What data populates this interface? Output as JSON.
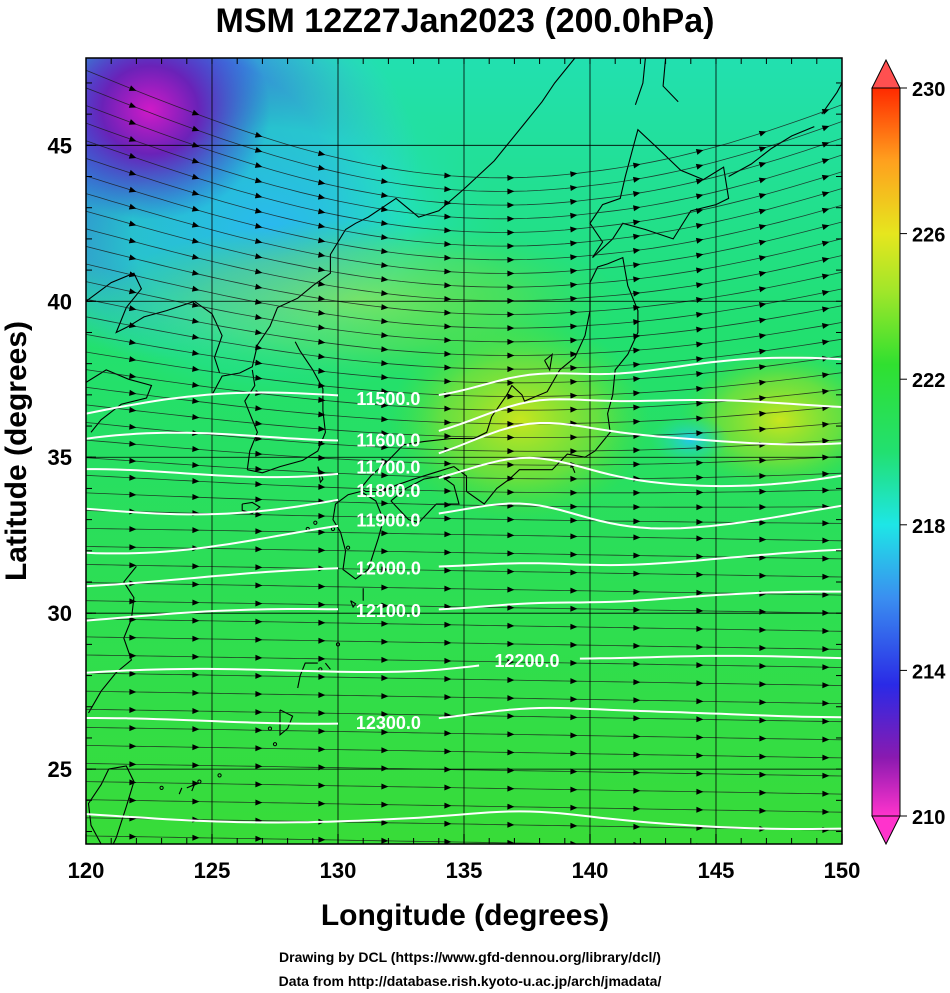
{
  "title": "MSM 12Z27Jan2023 (200.0hPa)",
  "xlabel": "Longitude (degrees)",
  "ylabel": "Latitude  (degrees)",
  "credit_drawing": "Drawing by DCL (https://www.gfd-dennou.org/library/dcl/)",
  "credit_data": "Data from http://database.rish.kyoto-u.ac.jp/arch/jmadata/",
  "chart_data": {
    "type": "heatmap",
    "x_ticks": [
      "120",
      "125",
      "130",
      "135",
      "140",
      "145",
      "150"
    ],
    "y_ticks": [
      "45",
      "40",
      "35",
      "30",
      "25"
    ],
    "xlim": [
      120,
      150
    ],
    "ylim": [
      22.6,
      47.8
    ],
    "colorbar": {
      "labels": [
        "230",
        "226",
        "222",
        "218",
        "214",
        "210"
      ],
      "range": [
        210,
        230
      ],
      "colors": [
        "#ff33cc",
        "#7a1aa8",
        "#2a2ae6",
        "#3a8ff0",
        "#1ee6e6",
        "#22e070",
        "#22e622",
        "#a0e62a",
        "#e6e61e",
        "#ffa01e",
        "#ff2a00"
      ]
    },
    "height_contours": [
      {
        "label": "11500.0",
        "lat_west": 36.4,
        "lat_east": 38.0
      },
      {
        "label": "11600.0",
        "lat_west": 35.3,
        "lat_east": 36.8
      },
      {
        "label": "11700.0",
        "lat_west": 34.3,
        "lat_east": 35.8
      },
      {
        "label": "11800.0",
        "lat_west": 33.3,
        "lat_east": 34.6
      },
      {
        "label": "11900.0",
        "lat_west": 32.2,
        "lat_east": 33.3
      },
      {
        "label": "12000.0",
        "lat_west": 31.0,
        "lat_east": 31.9
      },
      {
        "label": "12100.0",
        "lat_west": 29.8,
        "lat_east": 30.6
      },
      {
        "label": "12200.0",
        "lat_west": 28.0,
        "lat_east": 28.6
      },
      {
        "label": "12300.0",
        "lat_west": 26.5,
        "lat_east": 26.8
      },
      {
        "label": "",
        "lat_west": 23.5,
        "lat_east": 23.2
      }
    ],
    "wind_vectors": "westerly flow across domain"
  }
}
